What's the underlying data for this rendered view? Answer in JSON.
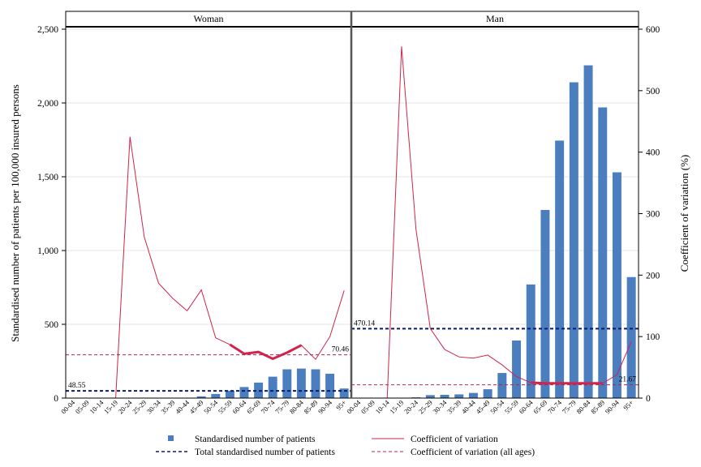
{
  "chart_data": {
    "type": "bar",
    "panels": [
      "Woman",
      "Man"
    ],
    "categories": [
      "00-04",
      "05-09",
      "10-14",
      "15-19",
      "20-24",
      "25-29",
      "30-34",
      "35-39",
      "40-44",
      "45-49",
      "50-54",
      "55-59",
      "60-64",
      "65-69",
      "70-74",
      "75-79",
      "80-84",
      "85-89",
      "90-94",
      "95+"
    ],
    "ylabel": "Standardised number of patients per 100,000 insured persons",
    "y2label": "Coefficient of variation (%)",
    "ylim": [
      0,
      2500
    ],
    "y2lim": [
      0,
      600
    ],
    "yticks": [
      "0",
      "500",
      "1,000",
      "1,500",
      "2,000",
      "2,500"
    ],
    "y2ticks": [
      "0",
      "100",
      "200",
      "300",
      "400",
      "500",
      "600"
    ],
    "colors": {
      "bar": "#4a7ebf",
      "cv": "#d1234b",
      "total": "#0a1a6e",
      "cv_all": "#b0264f"
    },
    "series": [
      {
        "name": "Standardised number of patients",
        "panels": [
          [
            0,
            0,
            0,
            0,
            0,
            0,
            0,
            0,
            0,
            12,
            28,
            50,
            75,
            105,
            145,
            195,
            200,
            195,
            165,
            65
          ],
          [
            0,
            0,
            0,
            0,
            5,
            20,
            22,
            25,
            35,
            60,
            170,
            390,
            770,
            1275,
            1745,
            2140,
            2255,
            1970,
            1530,
            820
          ]
        ]
      },
      {
        "name": "Coefficient of variation",
        "panels": [
          [
            null,
            null,
            null,
            0,
            425,
            262,
            187,
            162,
            142,
            176,
            98,
            87,
            72,
            75,
            64,
            74,
            86,
            63,
            100,
            175
          ],
          [
            null,
            null,
            0,
            572,
            275,
            113,
            79,
            67,
            65,
            70,
            54,
            35,
            25,
            24,
            24,
            24,
            24,
            24,
            38,
            92
          ]
        ]
      }
    ],
    "cv_highlight_ranges": [
      [
        11,
        16
      ],
      [
        12,
        17
      ]
    ],
    "total_standardised": [
      48.55,
      470.14
    ],
    "cv_all_ages": [
      70.46,
      21.67
    ],
    "total_labels": [
      "48.55",
      "470.14"
    ],
    "cv_all_labels": [
      "70.46",
      "21.67"
    ],
    "legend": [
      "Standardised number of patients",
      "Coefficient of variation",
      "Total standardised number of patients",
      "Coefficient of variation (all ages)"
    ]
  }
}
